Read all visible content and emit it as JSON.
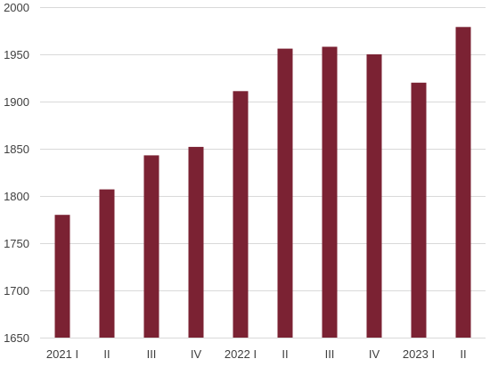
{
  "chart_data": {
    "type": "bar",
    "title": "",
    "xlabel": "",
    "ylabel": "",
    "categories": [
      "2021 I",
      "II",
      "III",
      "IV",
      "2022 I",
      "II",
      "III",
      "IV",
      "2023 I",
      "II"
    ],
    "values": [
      1780,
      1807,
      1843,
      1852,
      1911,
      1956,
      1958,
      1950,
      1920,
      1979
    ],
    "ylim": [
      1650,
      2000
    ],
    "yticks": [
      1650,
      1700,
      1750,
      1800,
      1850,
      1900,
      1950,
      2000
    ],
    "grid": true,
    "legend": "none",
    "colors": {
      "bar": "#7B2233",
      "grid": "#d9d9d9",
      "axis_text": "#404040"
    }
  }
}
